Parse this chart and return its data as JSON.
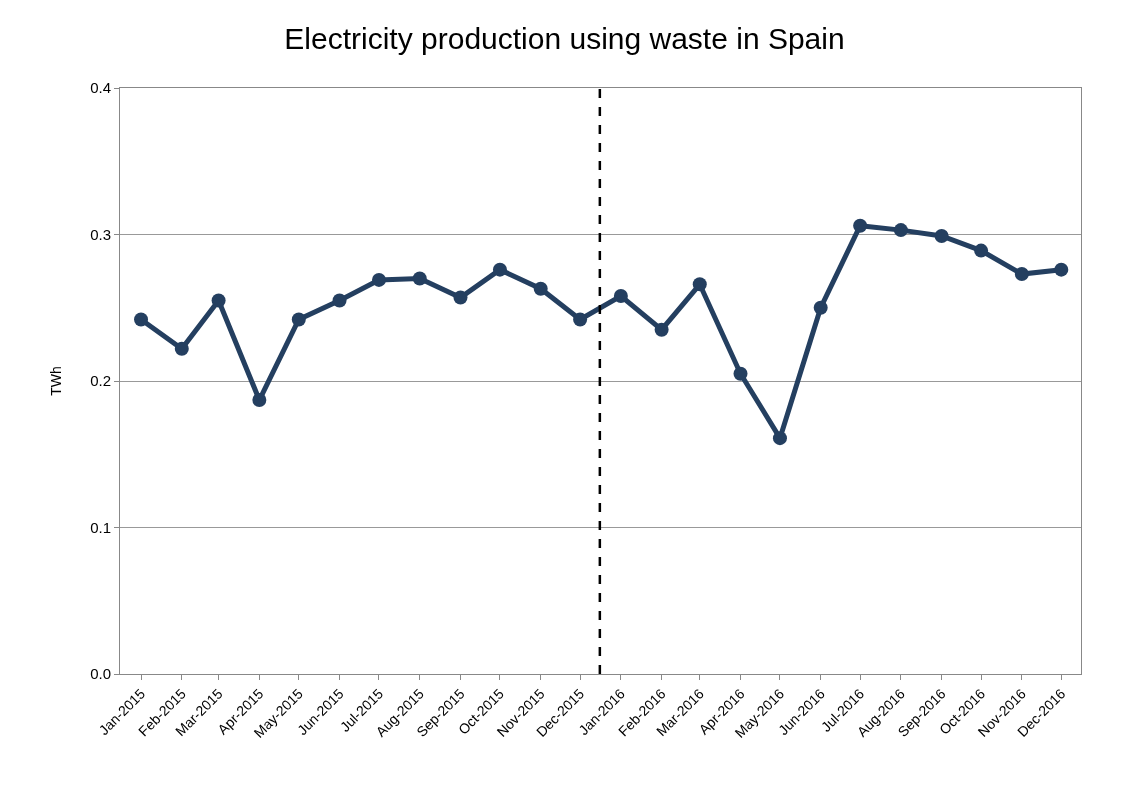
{
  "chart_data": {
    "type": "line",
    "title": "Electricity production using waste in Spain",
    "ylabel": "TWh",
    "x": [
      "2015-01",
      "2015-02",
      "2015-03",
      "2015-04",
      "2015-05",
      "2015-06",
      "2015-07",
      "2015-08",
      "2015-09",
      "2015-10",
      "2015-11",
      "2015-12",
      "2016-01",
      "2016-02",
      "2016-03",
      "2016-04",
      "2016-05",
      "2016-06",
      "2016-07",
      "2016-08",
      "2016-09",
      "2016-10",
      "2016-11",
      "2016-12"
    ],
    "series": [
      {
        "color": "#243f60",
        "values": [
          0.242,
          0.222,
          0.255,
          0.187,
          0.242,
          0.255,
          0.269,
          0.27,
          0.257,
          0.276,
          0.263,
          0.242,
          0.258,
          0.235,
          0.266,
          0.205,
          0.161,
          0.25,
          0.306,
          0.303,
          0.299,
          0.289,
          0.273,
          0.276
        ]
      }
    ],
    "xlim": [
      "2014-12-16",
      "2016-12-16"
    ],
    "xticks": [
      {
        "value": "2015-01",
        "label": "Jan-2015"
      },
      {
        "value": "2015-02",
        "label": "Feb-2015"
      },
      {
        "value": "2015-03",
        "label": "Mar-2015"
      },
      {
        "value": "2015-04",
        "label": "Apr-2015"
      },
      {
        "value": "2015-05",
        "label": "May-2015"
      },
      {
        "value": "2015-06",
        "label": "Jun-2015"
      },
      {
        "value": "2015-07",
        "label": "Jul-2015"
      },
      {
        "value": "2015-08",
        "label": "Aug-2015"
      },
      {
        "value": "2015-09",
        "label": "Sep-2015"
      },
      {
        "value": "2015-10",
        "label": "Oct-2015"
      },
      {
        "value": "2015-11",
        "label": "Nov-2015"
      },
      {
        "value": "2015-12",
        "label": "Dec-2015"
      },
      {
        "value": "2016-01",
        "label": "Jan-2016"
      },
      {
        "value": "2016-02",
        "label": "Feb-2016"
      },
      {
        "value": "2016-03",
        "label": "Mar-2016"
      },
      {
        "value": "2016-04",
        "label": "Apr-2016"
      },
      {
        "value": "2016-05",
        "label": "May-2016"
      },
      {
        "value": "2016-06",
        "label": "Jun-2016"
      },
      {
        "value": "2016-07",
        "label": "Jul-2016"
      },
      {
        "value": "2016-08",
        "label": "Aug-2016"
      },
      {
        "value": "2016-09",
        "label": "Sep-2016"
      },
      {
        "value": "2016-10",
        "label": "Oct-2016"
      },
      {
        "value": "2016-11",
        "label": "Nov-2016"
      },
      {
        "value": "2016-12",
        "label": "Dec-2016"
      }
    ],
    "ylim": [
      0,
      0.4
    ],
    "yticks": [
      {
        "value": 0,
        "label": "0.0"
      },
      {
        "value": 0.1,
        "label": "0.1"
      },
      {
        "value": 0.2,
        "label": "0.2"
      },
      {
        "value": 0.3,
        "label": "0.3"
      },
      {
        "value": 0.4,
        "label": "0.4"
      }
    ],
    "ref_lines": [
      {
        "axis": "x",
        "value": "2015-12-16",
        "color": "#000000",
        "line_style": "dashed"
      }
    ],
    "grid": "y",
    "marker": "circle",
    "line_style": "solid"
  }
}
